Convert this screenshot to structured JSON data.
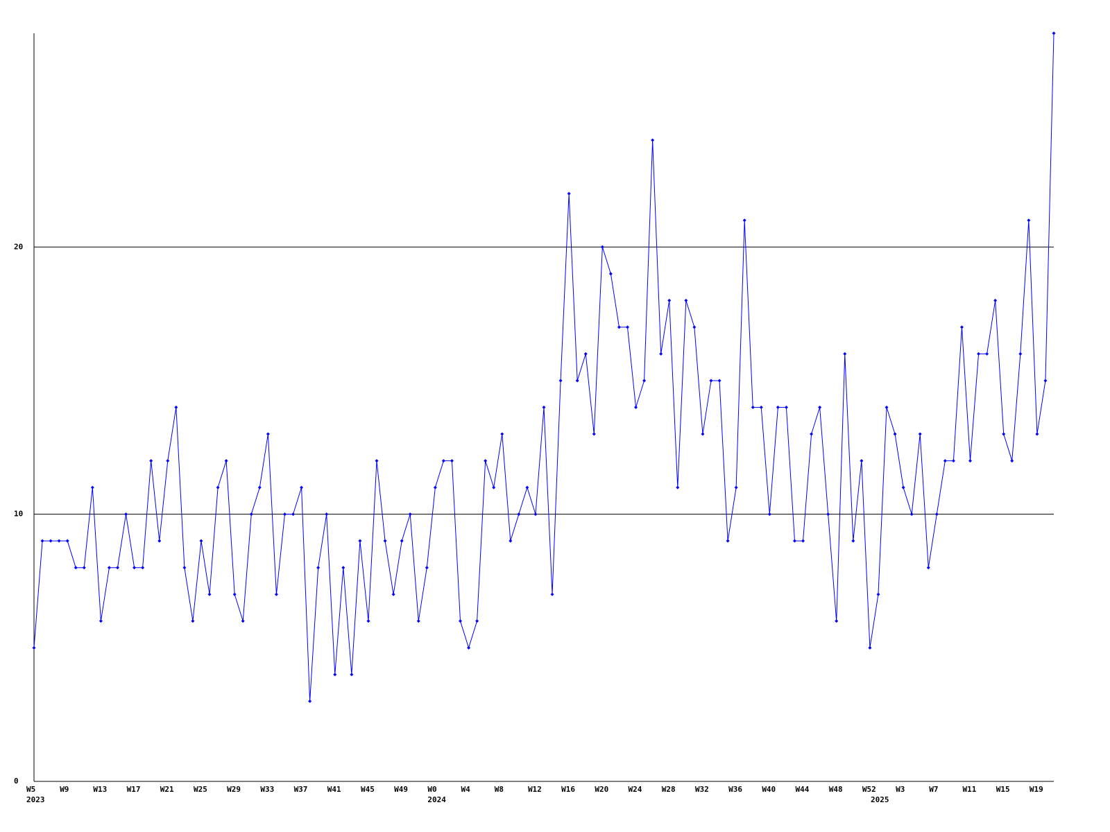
{
  "chart_data": {
    "type": "line",
    "categories": [
      "W5",
      null,
      null,
      null,
      "W9",
      null,
      null,
      null,
      "W13",
      null,
      null,
      null,
      "W17",
      null,
      null,
      null,
      "W21",
      null,
      null,
      null,
      "W25",
      null,
      null,
      null,
      "W29",
      null,
      null,
      null,
      "W33",
      null,
      null,
      null,
      "W37",
      null,
      null,
      null,
      "W41",
      null,
      null,
      null,
      "W45",
      null,
      null,
      null,
      "W49",
      null,
      null,
      null,
      "W0",
      null,
      null,
      null,
      "W4",
      null,
      null,
      null,
      "W8",
      null,
      null,
      null,
      "W12",
      null,
      null,
      null,
      "W16",
      null,
      null,
      null,
      "W20",
      null,
      null,
      null,
      "W24",
      null,
      null,
      null,
      "W28",
      null,
      null,
      null,
      "W32",
      null,
      null,
      null,
      "W36",
      null,
      null,
      null,
      "W40",
      null,
      null,
      null,
      "W44",
      null,
      null,
      null,
      "W48",
      null,
      null,
      null,
      "W52",
      null,
      null,
      null,
      "W3",
      null,
      null,
      null,
      "W7",
      null,
      null,
      null,
      "W11",
      null,
      null,
      null,
      "W15",
      null,
      null,
      null,
      "W19",
      null,
      null
    ],
    "year_labels": [
      {
        "index": 0,
        "label": "2023"
      },
      {
        "index": 48,
        "label": "2024"
      },
      {
        "index": 101,
        "label": "2025"
      }
    ],
    "values": [
      5,
      9,
      9,
      9,
      9,
      8,
      8,
      11,
      6,
      8,
      8,
      10,
      8,
      8,
      12,
      9,
      12,
      14,
      8,
      6,
      9,
      7,
      11,
      12,
      7,
      6,
      10,
      11,
      13,
      7,
      10,
      10,
      11,
      3,
      8,
      10,
      4,
      8,
      4,
      9,
      6,
      12,
      9,
      7,
      9,
      10,
      6,
      8,
      11,
      12,
      12,
      6,
      5,
      6,
      12,
      11,
      13,
      9,
      10,
      11,
      10,
      14,
      7,
      15,
      22,
      15,
      16,
      13,
      20,
      19,
      17,
      17,
      14,
      15,
      24,
      16,
      18,
      11,
      18,
      17,
      13,
      15,
      15,
      9,
      11,
      21,
      14,
      14,
      10,
      14,
      14,
      9,
      9,
      13,
      14,
      10,
      6,
      16,
      9,
      12,
      5,
      7,
      14,
      13,
      11,
      10,
      13,
      8,
      10,
      12,
      12,
      17,
      12,
      16,
      16,
      18,
      13,
      12,
      16,
      21,
      13,
      15,
      28
    ],
    "color": "#0000ff",
    "ylim": [
      0,
      28
    ],
    "yticks": [
      0,
      10,
      20
    ],
    "grid": true
  }
}
